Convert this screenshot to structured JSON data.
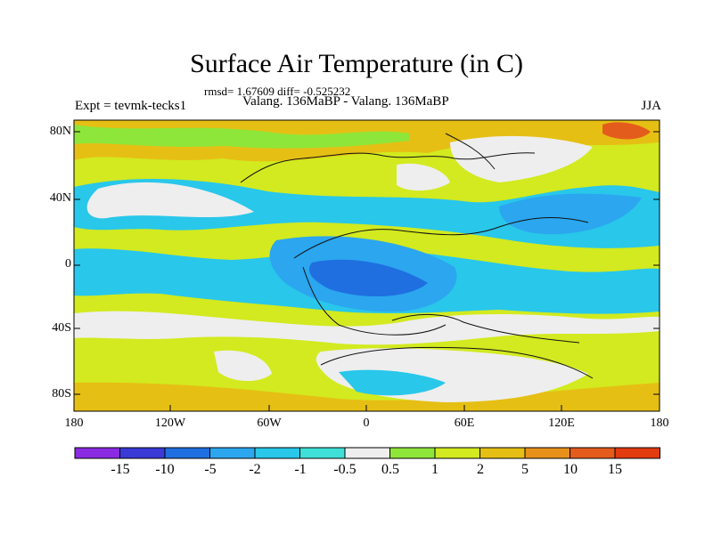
{
  "title": "Surface Air Temperature (in C)",
  "stats_line": "rmsd= 1.67609 diff= -0.525232",
  "subtitle": "Valang. 136MaBP - Valang. 136MaBP",
  "experiment": "Expt = tevmk-tecks1",
  "season": "JJA",
  "lat_ticks": [
    "80N",
    "40N",
    "0",
    "40S",
    "80S"
  ],
  "lon_ticks": [
    "180",
    "120W",
    "60W",
    "0",
    "60E",
    "120E",
    "180"
  ],
  "colorbar": {
    "labels": [
      "-15",
      "-10",
      "-5",
      "-2",
      "-1",
      "-0.5",
      "0.5",
      "1",
      "2",
      "5",
      "10",
      "15"
    ],
    "colors": [
      "#8a2be2",
      "#3a3ad6",
      "#1f6fe0",
      "#2ba6ef",
      "#29c7ea",
      "#3fe0d8",
      "#eeeeee",
      "#8fe63a",
      "#d2ea1f",
      "#e6bf14",
      "#e8911a",
      "#e45c1c",
      "#e23b10"
    ]
  },
  "map": {
    "colors": {
      "neutral": "#eeeeee",
      "cool_1": "#29c7ea",
      "cool_2": "#2ba6ef",
      "cool_3": "#1f6fe0",
      "warm_1": "#8fe63a",
      "warm_2": "#d2ea1f",
      "warm_3": "#e6bf14",
      "warm_4": "#e8911a",
      "warm_5": "#e45c1c"
    }
  }
}
